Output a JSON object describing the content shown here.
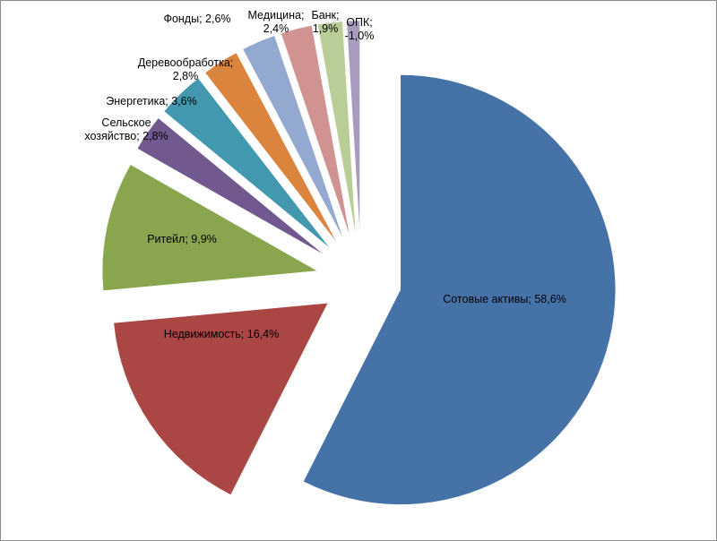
{
  "chart_data": {
    "type": "pie",
    "title": "",
    "legend": "none",
    "slices": [
      {
        "name": "Сотовые активы",
        "value_label": "58,6%",
        "value": 58.6,
        "color": "#4572a7"
      },
      {
        "name": "Недвижимость",
        "value_label": "16,4%",
        "value": 16.4,
        "color": "#aa4643"
      },
      {
        "name": "Ритейл",
        "value_label": "9,9%",
        "value": 9.9,
        "color": "#89a54e"
      },
      {
        "name": "Сельское хозяйство",
        "value_label": "2,8%",
        "value": 2.8,
        "color": "#71588f"
      },
      {
        "name": "Энергетика",
        "value_label": "3,6%",
        "value": 3.6,
        "color": "#4198af"
      },
      {
        "name": "Деревообработка",
        "value_label": "2,8%",
        "value": 2.8,
        "color": "#db843d"
      },
      {
        "name": "Фонды",
        "value_label": "2,6%",
        "value": 2.6,
        "color": "#93a9cf"
      },
      {
        "name": "Медицина",
        "value_label": "2,4%",
        "value": 2.4,
        "color": "#d19392"
      },
      {
        "name": "Банк",
        "value_label": "1,9%",
        "value": 1.9,
        "color": "#b9cd96"
      },
      {
        "name": "ОПК",
        "value_label": "-1,0%",
        "value": -1.0,
        "color": "#a99bbd"
      }
    ]
  }
}
